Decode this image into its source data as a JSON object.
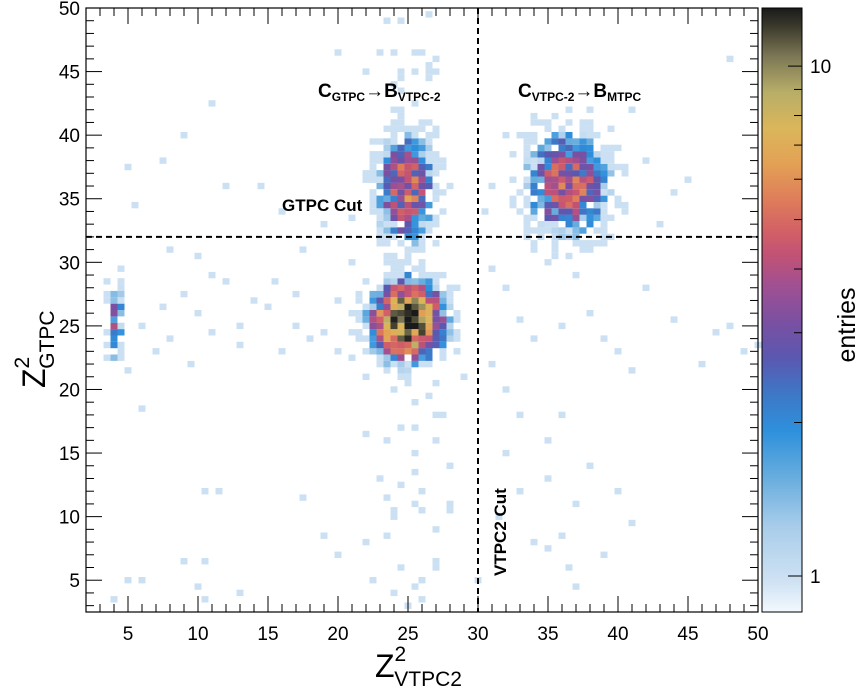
{
  "chart_data": {
    "type": "heatmap",
    "x_axis": {
      "label_base": "Z",
      "label_sup": "2",
      "label_sub": "VTPC2",
      "range": [
        2,
        50
      ],
      "ticks": [
        5,
        10,
        15,
        20,
        25,
        30,
        35,
        40,
        45,
        50
      ]
    },
    "y_axis": {
      "label_base": "Z",
      "label_sup": "2",
      "label_sub": "GTPC",
      "range": [
        2.5,
        50
      ],
      "ticks": [
        5,
        10,
        15,
        20,
        25,
        30,
        35,
        40,
        45,
        50
      ]
    },
    "color_scale": {
      "title": "entries",
      "scale": "log",
      "range": [
        0.85,
        13
      ],
      "tick_labels": [
        {
          "value": 1,
          "label": "1"
        },
        {
          "value": 10,
          "label": "10"
        }
      ]
    },
    "cut_lines": [
      {
        "orientation": "vertical",
        "value": 30,
        "label": "VTPC2 Cut"
      },
      {
        "orientation": "horizontal",
        "value": 32,
        "label": "GTPC Cut"
      }
    ],
    "annotations": [
      {
        "main1": "C",
        "sub1": "GTPC",
        "arrow": "→",
        "main2": "B",
        "sub2": "VTPC-2"
      },
      {
        "main1": "C",
        "sub1": "VTPC-2",
        "arrow": "→",
        "main2": "B",
        "sub2": "MTPC"
      }
    ],
    "clusters": [
      {
        "name": "main",
        "center": [
          25,
          25.2
        ],
        "sigma": [
          1.4,
          1.7
        ],
        "peak": 13
      },
      {
        "name": "upper-middle",
        "center": [
          25,
          36
        ],
        "sigma": [
          1.2,
          2.6
        ],
        "peak": 5
      },
      {
        "name": "upper-right",
        "center": [
          36.5,
          36
        ],
        "sigma": [
          1.7,
          2.4
        ],
        "peak": 5
      },
      {
        "name": "left-edge",
        "center": [
          4,
          25.5
        ],
        "sigma": [
          0.35,
          2.0
        ],
        "peak": 3
      }
    ],
    "scatter_points": [
      [
        20,
        46.7
      ],
      [
        23,
        46.7
      ],
      [
        26.5,
        49.5
      ],
      [
        11,
        42.5
      ],
      [
        9,
        39.8
      ],
      [
        7.5,
        38
      ],
      [
        5,
        37.3
      ],
      [
        12,
        36.2
      ],
      [
        14.5,
        36.2
      ],
      [
        16,
        34.2
      ],
      [
        21,
        33.5
      ],
      [
        19,
        32.8
      ],
      [
        5.5,
        34.5
      ],
      [
        8,
        31
      ],
      [
        10,
        30.5
      ],
      [
        12,
        28.5
      ],
      [
        14,
        27
      ],
      [
        15,
        26.5
      ],
      [
        17,
        25
      ],
      [
        18,
        24
      ],
      [
        19,
        24.5
      ],
      [
        16,
        23
      ],
      [
        13,
        23.5
      ],
      [
        11,
        24.5
      ],
      [
        10,
        26
      ],
      [
        9,
        27.5
      ],
      [
        8,
        24
      ],
      [
        7,
        23
      ],
      [
        6,
        25
      ],
      [
        7.5,
        26.3
      ],
      [
        9.5,
        22
      ],
      [
        11,
        29
      ],
      [
        13,
        25
      ],
      [
        17,
        27.5
      ],
      [
        20,
        27.2
      ],
      [
        21,
        30
      ],
      [
        17.5,
        31
      ],
      [
        15.5,
        28.5
      ],
      [
        5,
        21.5
      ],
      [
        32,
        28
      ],
      [
        33,
        25.5
      ],
      [
        34,
        24
      ],
      [
        31,
        29.5
      ],
      [
        36,
        25
      ],
      [
        38,
        26
      ],
      [
        40,
        23
      ],
      [
        42,
        28
      ],
      [
        44,
        25.5
      ],
      [
        46,
        22
      ],
      [
        47,
        24.5
      ],
      [
        48,
        25
      ],
      [
        49,
        23.2
      ],
      [
        50,
        23.3
      ],
      [
        41,
        21.5
      ],
      [
        39,
        24
      ],
      [
        37,
        29
      ],
      [
        35,
        30
      ],
      [
        43,
        33
      ],
      [
        45,
        36.5
      ],
      [
        48,
        45.8
      ],
      [
        33,
        40
      ],
      [
        34,
        37
      ],
      [
        32,
        40
      ],
      [
        31,
        36
      ],
      [
        30.5,
        34
      ],
      [
        41,
        42
      ],
      [
        42,
        38
      ],
      [
        44,
        35.5
      ],
      [
        31,
        22
      ],
      [
        32,
        20
      ],
      [
        33,
        18
      ],
      [
        35,
        16
      ],
      [
        36,
        17.8
      ],
      [
        38,
        14
      ],
      [
        40,
        12
      ],
      [
        41,
        9.5
      ],
      [
        37,
        11
      ],
      [
        36,
        8.5
      ],
      [
        34,
        8
      ],
      [
        35,
        7.5
      ],
      [
        31.5,
        10
      ],
      [
        33,
        12
      ],
      [
        32,
        15
      ],
      [
        35,
        13
      ],
      [
        37,
        4.5
      ],
      [
        39,
        7
      ],
      [
        36.5,
        6
      ],
      [
        6,
        18.5
      ],
      [
        10.5,
        12
      ],
      [
        11.5,
        11.8
      ],
      [
        17.5,
        11.5
      ],
      [
        10.5,
        6.5
      ],
      [
        10,
        4.5
      ],
      [
        9,
        6.5
      ],
      [
        5,
        5
      ],
      [
        13,
        4
      ],
      [
        6,
        5
      ],
      [
        10.5,
        3.5
      ],
      [
        4,
        3.5
      ],
      [
        22,
        8
      ],
      [
        20,
        7
      ],
      [
        19,
        8.5
      ],
      [
        24,
        10
      ],
      [
        23,
        13
      ],
      [
        22,
        16.5
      ],
      [
        22,
        21
      ],
      [
        21,
        22.5
      ],
      [
        20,
        23
      ],
      [
        21,
        26
      ],
      [
        27,
        9
      ],
      [
        28,
        14
      ],
      [
        27.5,
        18
      ],
      [
        29,
        21
      ],
      [
        28.5,
        23
      ],
      [
        30,
        5
      ],
      [
        27,
        6
      ],
      [
        26,
        5
      ],
      [
        28,
        10.5
      ],
      [
        26,
        12
      ],
      [
        28,
        11
      ],
      [
        25.5,
        15
      ],
      [
        24.5,
        17
      ],
      [
        27,
        16
      ],
      [
        23.5,
        11.5
      ],
      [
        22.5,
        5
      ],
      [
        24,
        4
      ],
      [
        26,
        3.5
      ],
      [
        25,
        3
      ],
      [
        22,
        45
      ],
      [
        24,
        44
      ],
      [
        27,
        45
      ],
      [
        26,
        41
      ]
    ]
  }
}
